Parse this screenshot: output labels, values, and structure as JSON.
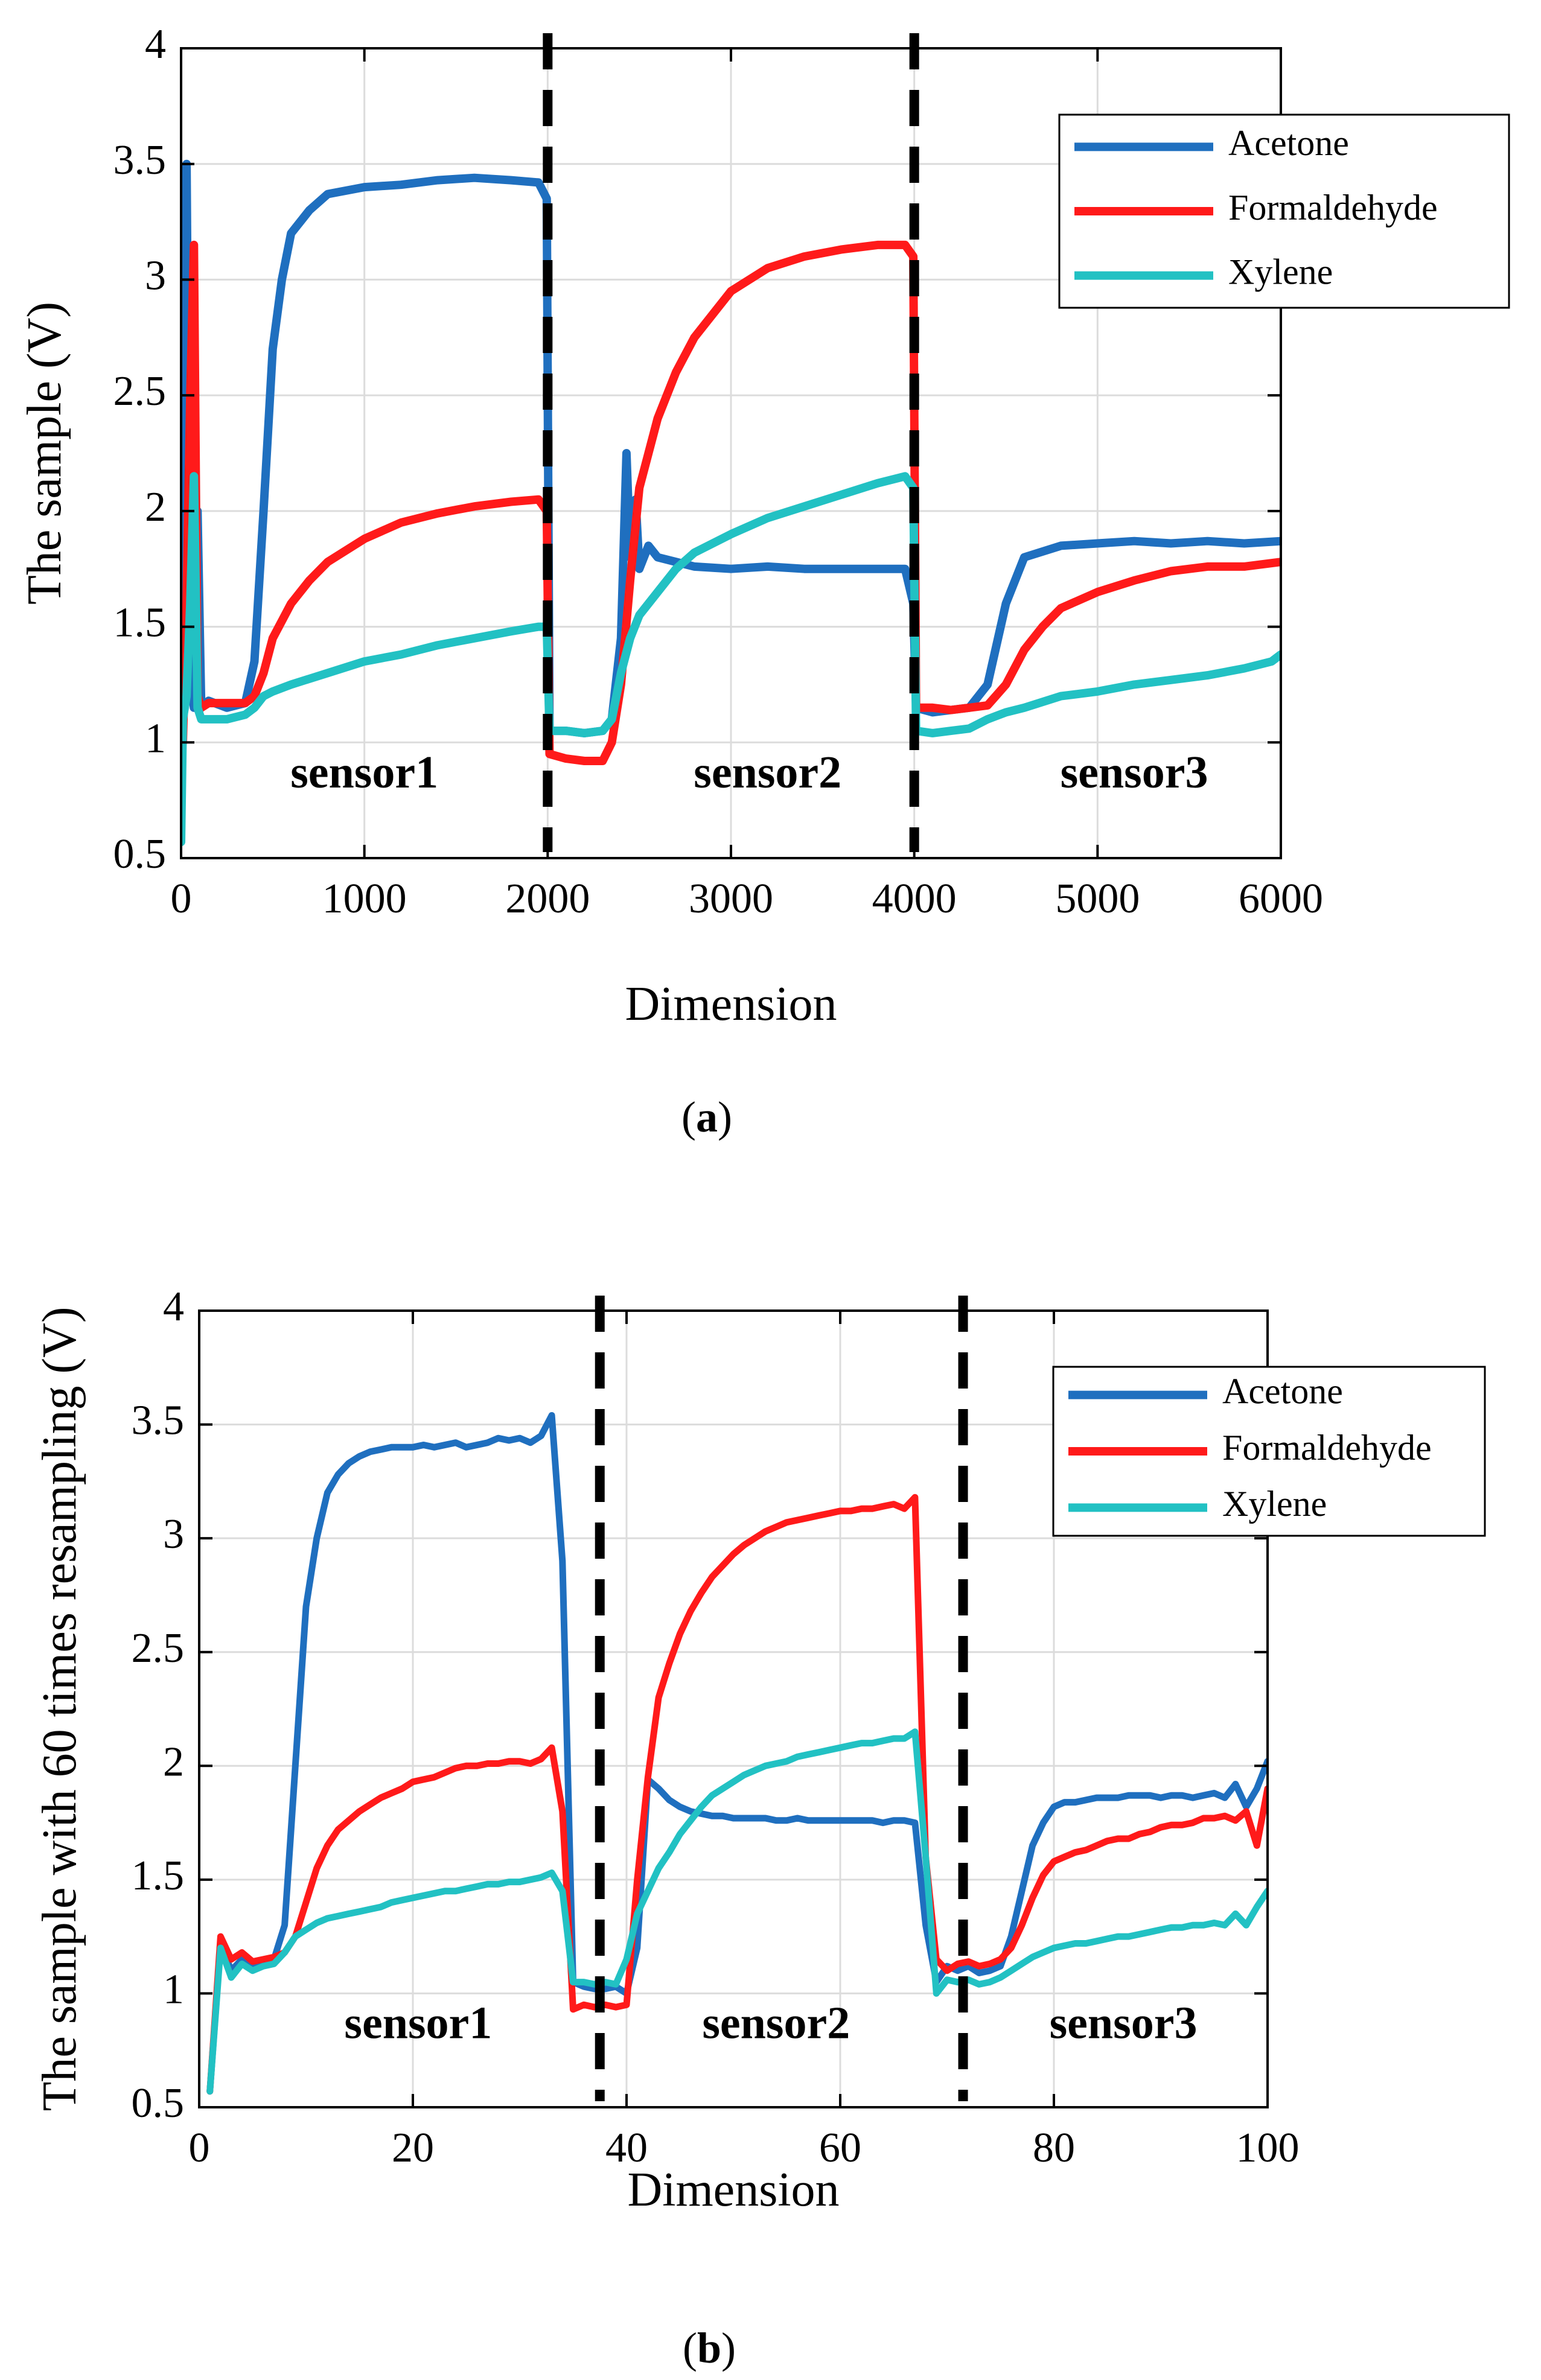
{
  "colors": {
    "acetone": "#1f6fbf",
    "formaldehyde": "#ff1a1a",
    "xylene": "#22c1c3",
    "divider": "#000000",
    "grid": "#dcdcdc"
  },
  "chart_data": [
    {
      "type": "line",
      "caption_prefix": "(",
      "caption_letter": "a",
      "caption_suffix": ")",
      "xlabel": "Dimension",
      "ylabel": "The sample (V)",
      "xlim": [
        0,
        6000
      ],
      "ylim": [
        0.5,
        4
      ],
      "xticks": [
        0,
        1000,
        2000,
        3000,
        4000,
        5000,
        6000
      ],
      "xtick_labels": [
        "0",
        "1000",
        "2000",
        "3000",
        "4000",
        "5000",
        "6000"
      ],
      "yticks": [
        0.5,
        1,
        1.5,
        2,
        2.5,
        3,
        3.5,
        4
      ],
      "ytick_labels": [
        "0.5",
        "1",
        "1.5",
        "2",
        "2.5",
        "3",
        "3.5",
        "4"
      ],
      "grid": true,
      "legend_position": "top-right",
      "dividers_x": [
        2000,
        4000
      ],
      "regions": [
        {
          "label": "sensor1",
          "x": 1000,
          "y": 0.85
        },
        {
          "label": "sensor2",
          "x": 3200,
          "y": 0.85
        },
        {
          "label": "sensor3",
          "x": 5200,
          "y": 0.85
        }
      ],
      "series": [
        {
          "name": "Acetone",
          "color_key": "acetone",
          "x": [
            0,
            10,
            30,
            50,
            70,
            90,
            110,
            150,
            250,
            350,
            400,
            450,
            500,
            550,
            600,
            700,
            800,
            1000,
            1200,
            1400,
            1600,
            1800,
            1950,
            1995,
            2010,
            2100,
            2200,
            2300,
            2350,
            2400,
            2430,
            2450,
            2480,
            2500,
            2550,
            2600,
            2700,
            2800,
            3000,
            3200,
            3400,
            3600,
            3800,
            3950,
            3995,
            4010,
            4100,
            4200,
            4300,
            4400,
            4500,
            4600,
            4800,
            5000,
            5200,
            5400,
            5600,
            5800,
            6000
          ],
          "y": [
            1.25,
            2.9,
            3.5,
            1.3,
            1.15,
            2.0,
            1.15,
            1.18,
            1.15,
            1.17,
            1.35,
            2.0,
            2.7,
            3.0,
            3.2,
            3.3,
            3.37,
            3.4,
            3.41,
            3.43,
            3.44,
            3.43,
            3.42,
            3.35,
            1.05,
            1.05,
            1.04,
            1.05,
            1.1,
            1.45,
            2.25,
            1.8,
            2.05,
            1.75,
            1.85,
            1.8,
            1.78,
            1.76,
            1.75,
            1.76,
            1.75,
            1.75,
            1.75,
            1.75,
            1.6,
            1.15,
            1.13,
            1.14,
            1.15,
            1.25,
            1.6,
            1.8,
            1.85,
            1.86,
            1.87,
            1.86,
            1.87,
            1.86,
            1.87
          ]
        },
        {
          "name": "Formaldehyde",
          "color_key": "formaldehyde",
          "x": [
            0,
            10,
            30,
            50,
            70,
            90,
            110,
            150,
            250,
            350,
            400,
            450,
            500,
            600,
            700,
            800,
            1000,
            1200,
            1400,
            1600,
            1800,
            1950,
            1995,
            2010,
            2100,
            2200,
            2300,
            2350,
            2400,
            2450,
            2500,
            2600,
            2700,
            2800,
            3000,
            3200,
            3400,
            3600,
            3800,
            3950,
            3995,
            4010,
            4100,
            4200,
            4300,
            4400,
            4500,
            4600,
            4700,
            4800,
            5000,
            5200,
            5400,
            5600,
            5800,
            6000
          ],
          "y": [
            1.2,
            1.0,
            1.6,
            2.5,
            3.15,
            1.2,
            1.15,
            1.17,
            1.17,
            1.17,
            1.2,
            1.3,
            1.45,
            1.6,
            1.7,
            1.78,
            1.88,
            1.95,
            1.99,
            2.02,
            2.04,
            2.05,
            2.0,
            0.95,
            0.93,
            0.92,
            0.92,
            1.0,
            1.25,
            1.7,
            2.1,
            2.4,
            2.6,
            2.75,
            2.95,
            3.05,
            3.1,
            3.13,
            3.15,
            3.15,
            3.1,
            1.15,
            1.15,
            1.14,
            1.15,
            1.16,
            1.25,
            1.4,
            1.5,
            1.58,
            1.65,
            1.7,
            1.74,
            1.76,
            1.76,
            1.78
          ]
        },
        {
          "name": "Xylene",
          "color_key": "xylene",
          "x": [
            0,
            10,
            30,
            50,
            70,
            90,
            110,
            150,
            250,
            350,
            400,
            450,
            500,
            600,
            800,
            1000,
            1200,
            1400,
            1600,
            1800,
            1950,
            1995,
            2010,
            2100,
            2200,
            2300,
            2350,
            2400,
            2450,
            2500,
            2600,
            2700,
            2800,
            3000,
            3200,
            3400,
            3600,
            3800,
            3950,
            3995,
            4010,
            4100,
            4200,
            4300,
            4400,
            4500,
            4600,
            4800,
            5000,
            5200,
            5400,
            5600,
            5800,
            5950,
            6000
          ],
          "y": [
            0.57,
            1.1,
            1.2,
            1.6,
            2.15,
            1.15,
            1.1,
            1.1,
            1.1,
            1.12,
            1.15,
            1.2,
            1.22,
            1.25,
            1.3,
            1.35,
            1.38,
            1.42,
            1.45,
            1.48,
            1.5,
            1.5,
            1.05,
            1.05,
            1.04,
            1.05,
            1.1,
            1.3,
            1.45,
            1.55,
            1.65,
            1.75,
            1.82,
            1.9,
            1.97,
            2.02,
            2.07,
            2.12,
            2.15,
            2.1,
            1.05,
            1.04,
            1.05,
            1.06,
            1.1,
            1.13,
            1.15,
            1.2,
            1.22,
            1.25,
            1.27,
            1.29,
            1.32,
            1.35,
            1.38
          ]
        }
      ]
    },
    {
      "type": "line",
      "caption_prefix": "(",
      "caption_letter": "b",
      "caption_suffix": ")",
      "xlabel": "Dimension",
      "ylabel": "The sample with 60 times resampling (V)",
      "xlim": [
        0,
        100
      ],
      "ylim": [
        0.5,
        4
      ],
      "xticks": [
        0,
        20,
        40,
        60,
        80,
        100
      ],
      "xtick_labels": [
        "0",
        "20",
        "40",
        "60",
        "80",
        "100"
      ],
      "yticks": [
        0.5,
        1,
        1.5,
        2,
        2.5,
        3,
        3.5,
        4
      ],
      "ytick_labels": [
        "0.5",
        "1",
        "1.5",
        "2",
        "2.5",
        "3",
        "3.5",
        "4"
      ],
      "grid": true,
      "legend_position": "top-right",
      "dividers_x": [
        37.5,
        71.5
      ],
      "regions": [
        {
          "label": "sensor1",
          "x": 20.5,
          "y": 0.85
        },
        {
          "label": "sensor2",
          "x": 54,
          "y": 0.85
        },
        {
          "label": "sensor3",
          "x": 86.5,
          "y": 0.85
        }
      ],
      "series": [
        {
          "name": "Acetone",
          "color_key": "acetone",
          "x": [
            1,
            2,
            3,
            4,
            5,
            6,
            7,
            8,
            9,
            10,
            11,
            12,
            13,
            14,
            15,
            16,
            17,
            18,
            19,
            20,
            21,
            22,
            23,
            24,
            25,
            26,
            27,
            28,
            29,
            30,
            31,
            32,
            33,
            34,
            35,
            36,
            37,
            38,
            39,
            40,
            41,
            42,
            43,
            44,
            45,
            46,
            47,
            48,
            49,
            50,
            51,
            52,
            53,
            54,
            55,
            56,
            57,
            58,
            59,
            60,
            61,
            62,
            63,
            64,
            65,
            66,
            67,
            68,
            69,
            70,
            71,
            72,
            73,
            74,
            75,
            76,
            77,
            78,
            79,
            80,
            81,
            82,
            83,
            84,
            85,
            86,
            87,
            88,
            89,
            90,
            91,
            92,
            93,
            94,
            95,
            96,
            97,
            98,
            99,
            100
          ],
          "y": [
            0.57,
            1.22,
            1.1,
            1.15,
            1.12,
            1.13,
            1.15,
            1.3,
            2.0,
            2.7,
            3.0,
            3.2,
            3.28,
            3.33,
            3.36,
            3.38,
            3.39,
            3.4,
            3.4,
            3.4,
            3.41,
            3.4,
            3.41,
            3.42,
            3.4,
            3.41,
            3.42,
            3.44,
            3.43,
            3.44,
            3.42,
            3.45,
            3.54,
            2.9,
            1.05,
            1.03,
            1.02,
            1.02,
            1.03,
            1.0,
            1.2,
            1.94,
            1.9,
            1.85,
            1.82,
            1.8,
            1.79,
            1.78,
            1.78,
            1.77,
            1.77,
            1.77,
            1.77,
            1.76,
            1.76,
            1.77,
            1.76,
            1.76,
            1.76,
            1.76,
            1.76,
            1.76,
            1.76,
            1.75,
            1.76,
            1.76,
            1.75,
            1.3,
            1.05,
            1.12,
            1.1,
            1.12,
            1.09,
            1.1,
            1.12,
            1.25,
            1.45,
            1.65,
            1.75,
            1.82,
            1.84,
            1.84,
            1.85,
            1.86,
            1.86,
            1.86,
            1.87,
            1.87,
            1.87,
            1.86,
            1.87,
            1.87,
            1.86,
            1.87,
            1.88,
            1.86,
            1.92,
            1.82,
            1.9,
            2.02
          ]
        },
        {
          "name": "Formaldehyde",
          "color_key": "formaldehyde",
          "x": [
            1,
            2,
            3,
            4,
            5,
            6,
            7,
            8,
            9,
            10,
            11,
            12,
            13,
            14,
            15,
            16,
            17,
            18,
            19,
            20,
            21,
            22,
            23,
            24,
            25,
            26,
            27,
            28,
            29,
            30,
            31,
            32,
            33,
            34,
            35,
            36,
            37,
            38,
            39,
            40,
            41,
            42,
            43,
            44,
            45,
            46,
            47,
            48,
            49,
            50,
            51,
            52,
            53,
            54,
            55,
            56,
            57,
            58,
            59,
            60,
            61,
            62,
            63,
            64,
            65,
            66,
            67,
            68,
            69,
            70,
            71,
            72,
            73,
            74,
            75,
            76,
            77,
            78,
            79,
            80,
            81,
            82,
            83,
            84,
            85,
            86,
            87,
            88,
            89,
            90,
            91,
            92,
            93,
            94,
            95,
            96,
            97,
            98,
            99,
            100
          ],
          "y": [
            0.57,
            1.25,
            1.15,
            1.18,
            1.14,
            1.15,
            1.16,
            1.18,
            1.25,
            1.4,
            1.55,
            1.65,
            1.72,
            1.76,
            1.8,
            1.83,
            1.86,
            1.88,
            1.9,
            1.93,
            1.94,
            1.95,
            1.97,
            1.99,
            2.0,
            2.0,
            2.01,
            2.01,
            2.02,
            2.02,
            2.01,
            2.03,
            2.08,
            1.8,
            0.93,
            0.95,
            0.94,
            0.95,
            0.94,
            0.95,
            1.5,
            1.95,
            2.3,
            2.45,
            2.58,
            2.68,
            2.76,
            2.83,
            2.88,
            2.93,
            2.97,
            3.0,
            3.03,
            3.05,
            3.07,
            3.08,
            3.09,
            3.1,
            3.11,
            3.12,
            3.12,
            3.13,
            3.13,
            3.14,
            3.15,
            3.13,
            3.18,
            1.6,
            1.15,
            1.1,
            1.13,
            1.14,
            1.12,
            1.13,
            1.15,
            1.2,
            1.3,
            1.42,
            1.52,
            1.58,
            1.6,
            1.62,
            1.63,
            1.65,
            1.67,
            1.68,
            1.68,
            1.7,
            1.71,
            1.73,
            1.74,
            1.74,
            1.75,
            1.77,
            1.77,
            1.78,
            1.76,
            1.8,
            1.65,
            1.9
          ]
        },
        {
          "name": "Xylene",
          "color_key": "xylene",
          "x": [
            1,
            2,
            3,
            4,
            5,
            6,
            7,
            8,
            9,
            10,
            11,
            12,
            13,
            14,
            15,
            16,
            17,
            18,
            19,
            20,
            21,
            22,
            23,
            24,
            25,
            26,
            27,
            28,
            29,
            30,
            31,
            32,
            33,
            34,
            35,
            36,
            37,
            38,
            39,
            40,
            41,
            42,
            43,
            44,
            45,
            46,
            47,
            48,
            49,
            50,
            51,
            52,
            53,
            54,
            55,
            56,
            57,
            58,
            59,
            60,
            61,
            62,
            63,
            64,
            65,
            66,
            67,
            68,
            69,
            70,
            71,
            72,
            73,
            74,
            75,
            76,
            77,
            78,
            79,
            80,
            81,
            82,
            83,
            84,
            85,
            86,
            87,
            88,
            89,
            90,
            91,
            92,
            93,
            94,
            95,
            96,
            97,
            98,
            99,
            100
          ],
          "y": [
            0.57,
            1.2,
            1.07,
            1.13,
            1.1,
            1.12,
            1.13,
            1.18,
            1.25,
            1.28,
            1.31,
            1.33,
            1.34,
            1.35,
            1.36,
            1.37,
            1.38,
            1.4,
            1.41,
            1.42,
            1.43,
            1.44,
            1.45,
            1.45,
            1.46,
            1.47,
            1.48,
            1.48,
            1.49,
            1.49,
            1.5,
            1.51,
            1.53,
            1.45,
            1.05,
            1.05,
            1.04,
            1.05,
            1.04,
            1.15,
            1.35,
            1.45,
            1.55,
            1.62,
            1.7,
            1.76,
            1.82,
            1.87,
            1.9,
            1.93,
            1.96,
            1.98,
            2.0,
            2.01,
            2.02,
            2.04,
            2.05,
            2.06,
            2.07,
            2.08,
            2.09,
            2.1,
            2.1,
            2.11,
            2.12,
            2.12,
            2.15,
            1.6,
            1.0,
            1.06,
            1.05,
            1.06,
            1.04,
            1.05,
            1.07,
            1.1,
            1.13,
            1.16,
            1.18,
            1.2,
            1.21,
            1.22,
            1.22,
            1.23,
            1.24,
            1.25,
            1.25,
            1.26,
            1.27,
            1.28,
            1.29,
            1.29,
            1.3,
            1.3,
            1.31,
            1.3,
            1.35,
            1.3,
            1.38,
            1.45
          ]
        }
      ]
    }
  ]
}
